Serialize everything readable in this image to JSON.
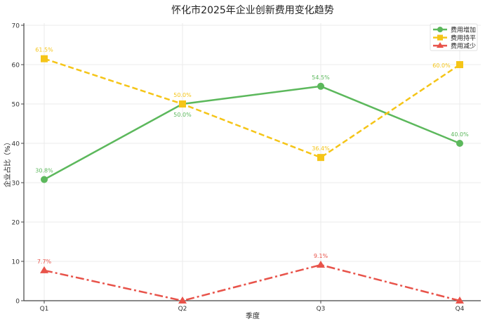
{
  "chart_data": {
    "type": "line",
    "title": "怀化市2025年企业创新费用变化趋势",
    "xlabel": "季度",
    "ylabel": "企业占比（%）",
    "categories": [
      "Q1",
      "Q2",
      "Q3",
      "Q4"
    ],
    "ylim": [
      0,
      70
    ],
    "yticks": [
      0,
      10,
      20,
      30,
      40,
      50,
      60,
      70
    ],
    "grid": true,
    "legend_placement": "top-right",
    "series": [
      {
        "name": "费用增加",
        "values": [
          30.8,
          50.0,
          54.5,
          40.0
        ],
        "labels": [
          "30.8%",
          "50.0%",
          "54.5%",
          "40.0%"
        ],
        "color": "#5cb85c",
        "marker": "circle",
        "linestyle": "solid"
      },
      {
        "name": "费用持平",
        "values": [
          61.5,
          50.0,
          36.4,
          60.0
        ],
        "labels": [
          "61.5%",
          "50.0%",
          "36.4%",
          "60.0%"
        ],
        "color": "#f5c518",
        "marker": "square",
        "linestyle": "dashed"
      },
      {
        "name": "费用减少",
        "values": [
          7.7,
          0,
          9.1,
          0
        ],
        "labels": [
          "7.7%",
          "",
          "9.1%",
          ""
        ],
        "color": "#e8534a",
        "marker": "triangle",
        "linestyle": "dashdot"
      }
    ]
  }
}
